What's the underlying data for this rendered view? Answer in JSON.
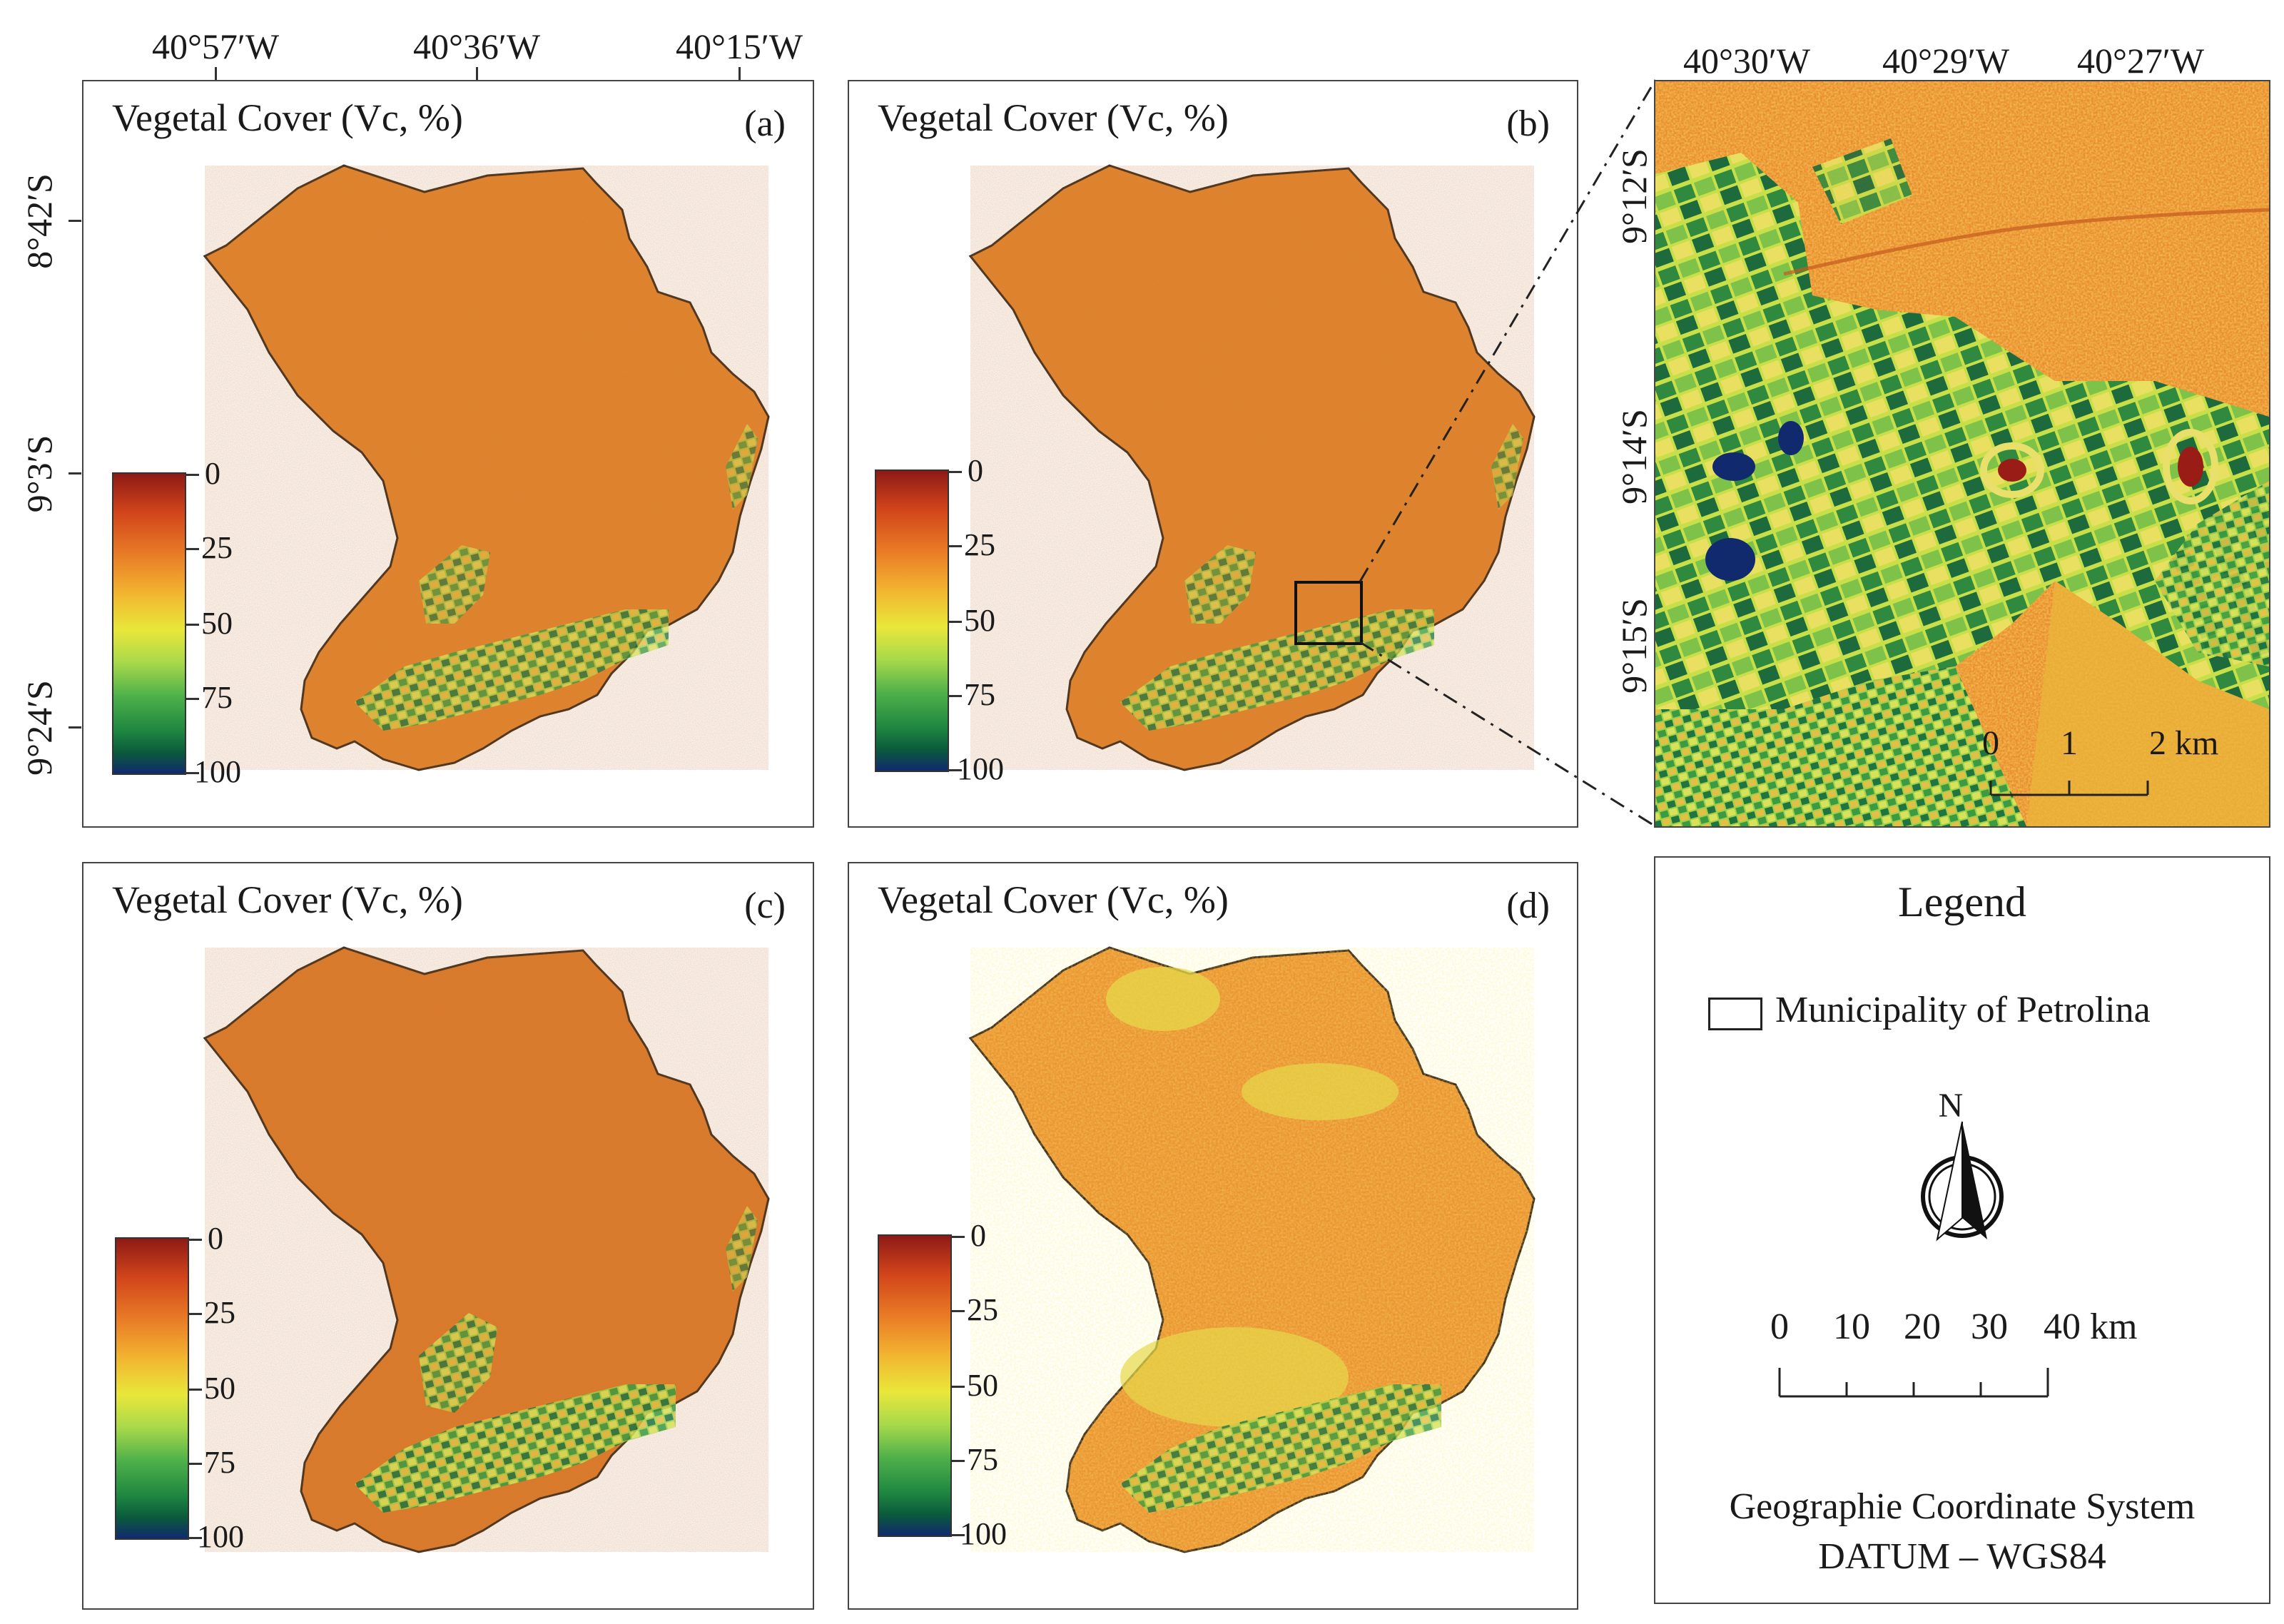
{
  "top_longitudes_left": [
    "40°57′W",
    "40°36′W",
    "40°15′W"
  ],
  "top_longitudes_inset": [
    "40°30′W",
    "40°29′W",
    "40°27′W"
  ],
  "left_latitudes": [
    "8°42′S",
    "9°3′S",
    "9°24′S"
  ],
  "inset_latitudes": [
    "9°12′S",
    "9°14′S",
    "9°15′S"
  ],
  "panels": [
    {
      "title": "Vegetal Cover (Vc, %)",
      "letter": "(a)"
    },
    {
      "title": "Vegetal Cover (Vc, %)",
      "letter": "(b)"
    },
    {
      "title": "Vegetal Cover (Vc, %)",
      "letter": "(c)"
    },
    {
      "title": "Vegetal Cover (Vc, %)",
      "letter": "(d)"
    }
  ],
  "colorbar_labels": [
    "0",
    "25",
    "50",
    "75",
    "100"
  ],
  "colors": {
    "low": "#8e1a16",
    "mid_low": "#e97c26",
    "mid": "#e9e73a",
    "mid_high": "#4fb14a",
    "high": "#112a6e",
    "background_orange": "#e98a2b"
  },
  "inset_scale": {
    "labels": [
      "0",
      "1",
      "2 km"
    ]
  },
  "legend": {
    "title": "Legend",
    "item": "Municipality of Petrolina",
    "north": "N",
    "scale_labels": [
      "0",
      "10",
      "20",
      "30",
      "40 km"
    ],
    "crs_line1": "Geographie Coordinate System",
    "crs_line2": "DATUM – WGS84"
  }
}
